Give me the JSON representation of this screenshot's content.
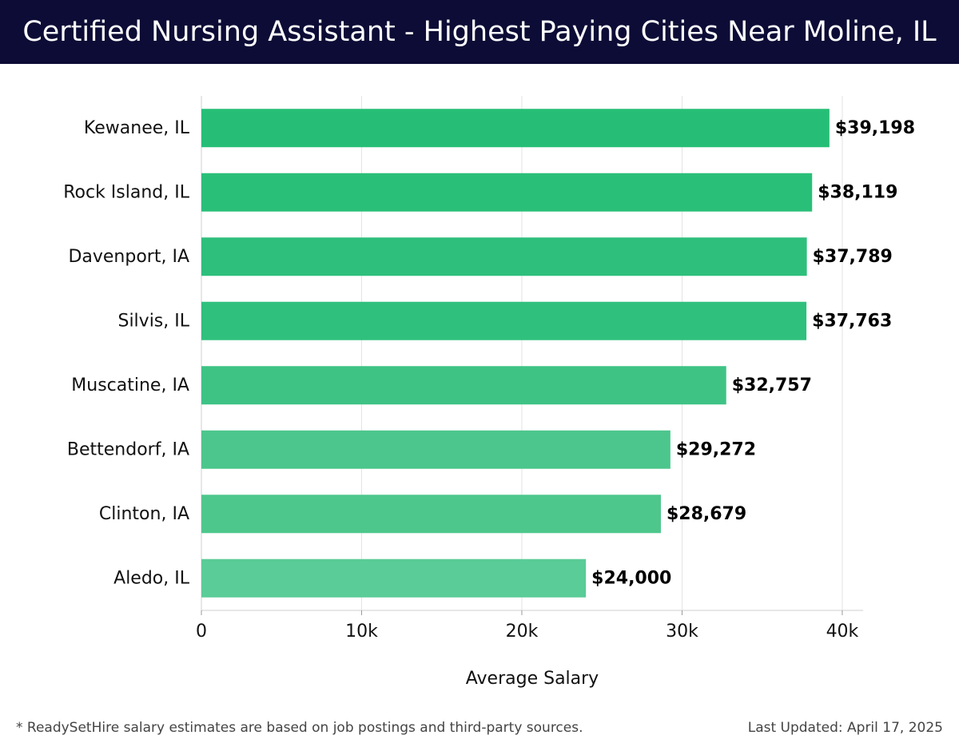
{
  "header": {
    "title": "Certified Nursing Assistant - Highest Paying Cities Near Moline, IL"
  },
  "chart_data": {
    "type": "bar",
    "orientation": "horizontal",
    "categories": [
      "Kewanee, IL",
      "Rock Island, IL",
      "Davenport, IA",
      "Silvis, IL",
      "Muscatine, IA",
      "Bettendorf, IA",
      "Clinton, IA",
      "Aledo, IL"
    ],
    "values": [
      39198,
      38119,
      37789,
      37763,
      32757,
      29272,
      28679,
      24000
    ],
    "value_labels": [
      "$39,198",
      "$38,119",
      "$37,789",
      "$37,763",
      "$32,757",
      "$29,272",
      "$28,679",
      "$24,000"
    ],
    "xlabel": "Average Salary",
    "ylabel": "",
    "xlim": [
      0,
      41300
    ],
    "xticks": [
      0,
      10000,
      20000,
      30000,
      40000
    ],
    "xtick_labels": [
      "0",
      "10k",
      "20k",
      "30k",
      "40k"
    ],
    "grid": "vertical",
    "colors": [
      "#26be76",
      "#2abf79",
      "#2ebf7c",
      "#2fc07d",
      "#3ec385",
      "#4cc68c",
      "#4ec78d",
      "#5acc97"
    ]
  },
  "footer": {
    "note": "* ReadySetHire salary estimates are based on job postings and third-party sources.",
    "updated": "Last Updated: April 17, 2025"
  }
}
